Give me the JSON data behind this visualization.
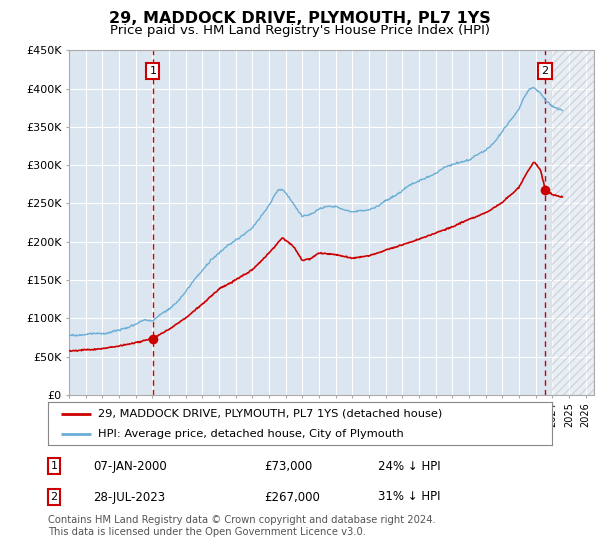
{
  "title": "29, MADDOCK DRIVE, PLYMOUTH, PL7 1YS",
  "subtitle": "Price paid vs. HM Land Registry's House Price Index (HPI)",
  "title_fontsize": 11.5,
  "subtitle_fontsize": 9.5,
  "background_color": "#ffffff",
  "plot_bg_color": "#dce6f1",
  "grid_color": "#ffffff",
  "ylim": [
    0,
    450000
  ],
  "yticks": [
    0,
    50000,
    100000,
    150000,
    200000,
    250000,
    300000,
    350000,
    400000,
    450000
  ],
  "ytick_labels": [
    "£0",
    "£50K",
    "£100K",
    "£150K",
    "£200K",
    "£250K",
    "£300K",
    "£350K",
    "£400K",
    "£450K"
  ],
  "xlim_start": 1995.0,
  "xlim_end": 2026.5,
  "hpi_color": "#6aaed6",
  "property_color": "#cc0000",
  "sale1_date_x": 2000.03,
  "sale1_price": 73000,
  "sale2_date_x": 2023.57,
  "sale2_price": 267000,
  "legend_line1": "29, MADDOCK DRIVE, PLYMOUTH, PL7 1YS (detached house)",
  "legend_line2": "HPI: Average price, detached house, City of Plymouth",
  "annotation1_date": "07-JAN-2000",
  "annotation1_price": "£73,000",
  "annotation1_hpi": "24% ↓ HPI",
  "annotation2_date": "28-JUL-2023",
  "annotation2_price": "£267,000",
  "annotation2_hpi": "31% ↓ HPI",
  "footer": "Contains HM Land Registry data © Crown copyright and database right 2024.\nThis data is licensed under the Open Government Licence v3.0.",
  "hatch_start": 2024.0,
  "marker_box_color": "#cc0000"
}
